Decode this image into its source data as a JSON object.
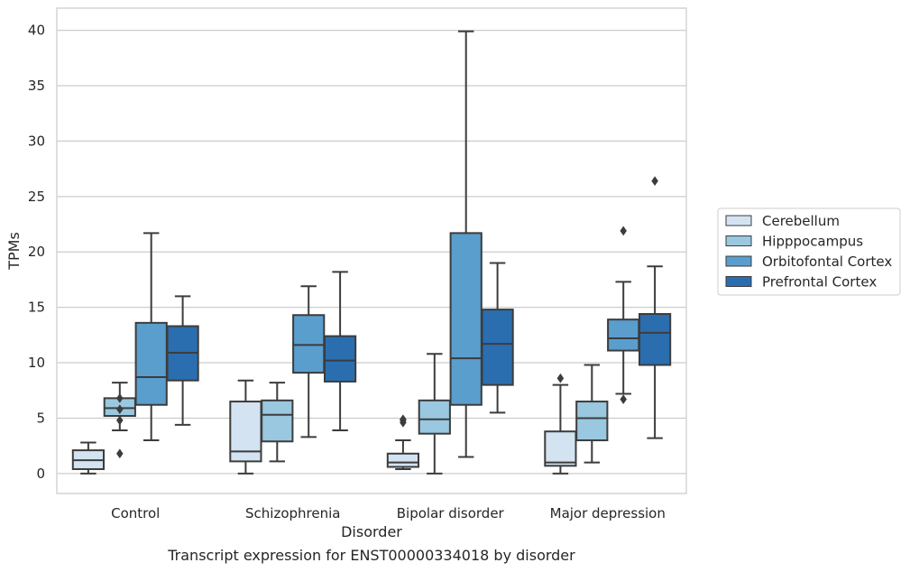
{
  "caption": "Transcript expression for ENST00000334018 by disorder",
  "chart_data": {
    "type": "box",
    "xlabel": "Disorder",
    "ylabel": "TPMs",
    "ylim": [
      -1.8,
      42
    ],
    "yticks": [
      0,
      5,
      10,
      15,
      20,
      25,
      30,
      35,
      40
    ],
    "grid": true,
    "legend_position": "right",
    "categories": [
      "Control",
      "Schizophrenia",
      "Bipolar disorder",
      "Major depression"
    ],
    "series": [
      {
        "name": "Cerebellum",
        "color": "#d3e3f1",
        "boxes": [
          {
            "whislo": 0.0,
            "q1": 0.4,
            "med": 1.2,
            "q3": 2.1,
            "whishi": 2.8,
            "fliers": []
          },
          {
            "whislo": 0.0,
            "q1": 1.1,
            "med": 2.0,
            "q3": 6.5,
            "whishi": 8.4,
            "fliers": []
          },
          {
            "whislo": 0.4,
            "q1": 0.6,
            "med": 1.0,
            "q3": 1.8,
            "whishi": 3.0,
            "fliers": [
              4.6,
              4.8,
              4.9
            ]
          },
          {
            "whislo": 0.0,
            "q1": 0.7,
            "med": 1.0,
            "q3": 3.8,
            "whishi": 8.0,
            "fliers": [
              8.6
            ]
          }
        ]
      },
      {
        "name": "Hipppocampus",
        "color": "#9ac8e0",
        "boxes": [
          {
            "whislo": 3.9,
            "q1": 5.2,
            "med": 5.9,
            "q3": 6.8,
            "whishi": 8.2,
            "fliers": [
              1.8,
              4.8,
              5.8,
              6.8
            ]
          },
          {
            "whislo": 1.1,
            "q1": 2.9,
            "med": 5.3,
            "q3": 6.6,
            "whishi": 8.2,
            "fliers": []
          },
          {
            "whislo": 0.0,
            "q1": 3.6,
            "med": 4.9,
            "q3": 6.6,
            "whishi": 10.8,
            "fliers": []
          },
          {
            "whislo": 1.0,
            "q1": 3.0,
            "med": 5.0,
            "q3": 6.5,
            "whishi": 9.8,
            "fliers": []
          }
        ]
      },
      {
        "name": "Orbitofontal Cortex",
        "color": "#5a9ecd",
        "boxes": [
          {
            "whislo": 3.0,
            "q1": 6.2,
            "med": 8.7,
            "q3": 13.6,
            "whishi": 21.7,
            "fliers": []
          },
          {
            "whislo": 3.3,
            "q1": 9.1,
            "med": 11.6,
            "q3": 14.3,
            "whishi": 16.9,
            "fliers": []
          },
          {
            "whislo": 1.5,
            "q1": 6.2,
            "med": 10.4,
            "q3": 21.7,
            "whishi": 39.9,
            "fliers": []
          },
          {
            "whislo": 7.2,
            "q1": 11.1,
            "med": 12.2,
            "q3": 13.9,
            "whishi": 17.3,
            "fliers": [
              6.7,
              21.9
            ]
          }
        ]
      },
      {
        "name": "Prefrontal Cortex",
        "color": "#2a6eb0",
        "boxes": [
          {
            "whislo": 4.4,
            "q1": 8.4,
            "med": 10.9,
            "q3": 13.3,
            "whishi": 16.0,
            "fliers": []
          },
          {
            "whislo": 3.9,
            "q1": 8.3,
            "med": 10.2,
            "q3": 12.4,
            "whishi": 18.2,
            "fliers": []
          },
          {
            "whislo": 5.5,
            "q1": 8.0,
            "med": 11.7,
            "q3": 14.8,
            "whishi": 19.0,
            "fliers": []
          },
          {
            "whislo": 3.2,
            "q1": 9.8,
            "med": 12.7,
            "q3": 14.4,
            "whishi": 18.7,
            "fliers": [
              26.4
            ]
          }
        ]
      }
    ]
  }
}
